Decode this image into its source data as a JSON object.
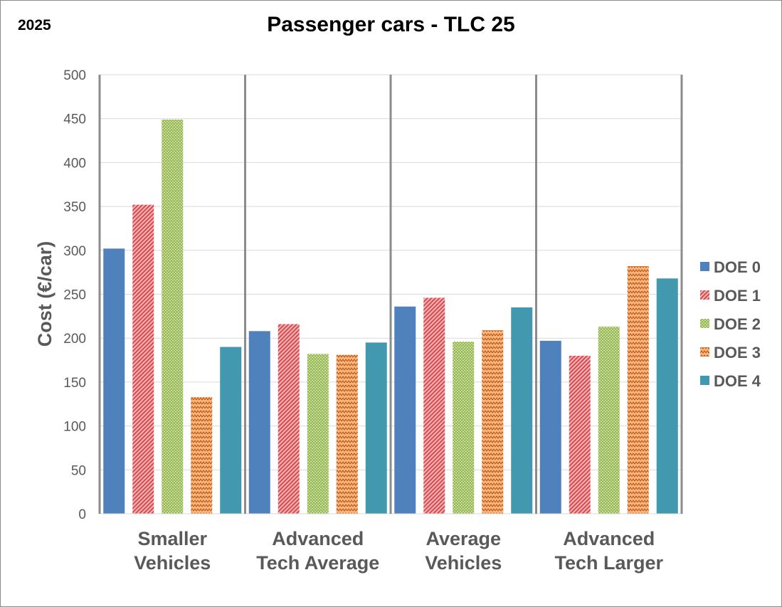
{
  "chart_data": {
    "type": "bar",
    "title": "Passenger cars - TLC 25",
    "corner_label": "2025",
    "xlabel": "",
    "ylabel": "Cost (€/car)",
    "ylim": [
      0,
      500
    ],
    "yticks": [
      0,
      50,
      100,
      150,
      200,
      250,
      300,
      350,
      400,
      450,
      500
    ],
    "grid": true,
    "legend_position": "right",
    "categories": [
      [
        "Smaller",
        "Vehicles"
      ],
      [
        "Advanced",
        "Tech Average"
      ],
      [
        "Average",
        "Vehicles"
      ],
      [
        "Advanced",
        "Tech Larger"
      ]
    ],
    "series": [
      {
        "name": "DOE 0",
        "color": "#4f81bd",
        "pattern": "solid",
        "values": [
          302,
          208,
          236,
          197
        ]
      },
      {
        "name": "DOE 1",
        "color": "#e05c5c",
        "pattern": "diagonal",
        "values": [
          352,
          216,
          246,
          180
        ]
      },
      {
        "name": "DOE 2",
        "color": "#9bbb59",
        "pattern": "dots",
        "values": [
          449,
          182,
          196,
          213
        ]
      },
      {
        "name": "DOE 3",
        "color": "#f79646",
        "pattern": "zigzag",
        "values": [
          133,
          181,
          209,
          282
        ]
      },
      {
        "name": "DOE 4",
        "color": "#4198af",
        "pattern": "solid",
        "values": [
          190,
          195,
          235,
          268
        ]
      }
    ]
  }
}
